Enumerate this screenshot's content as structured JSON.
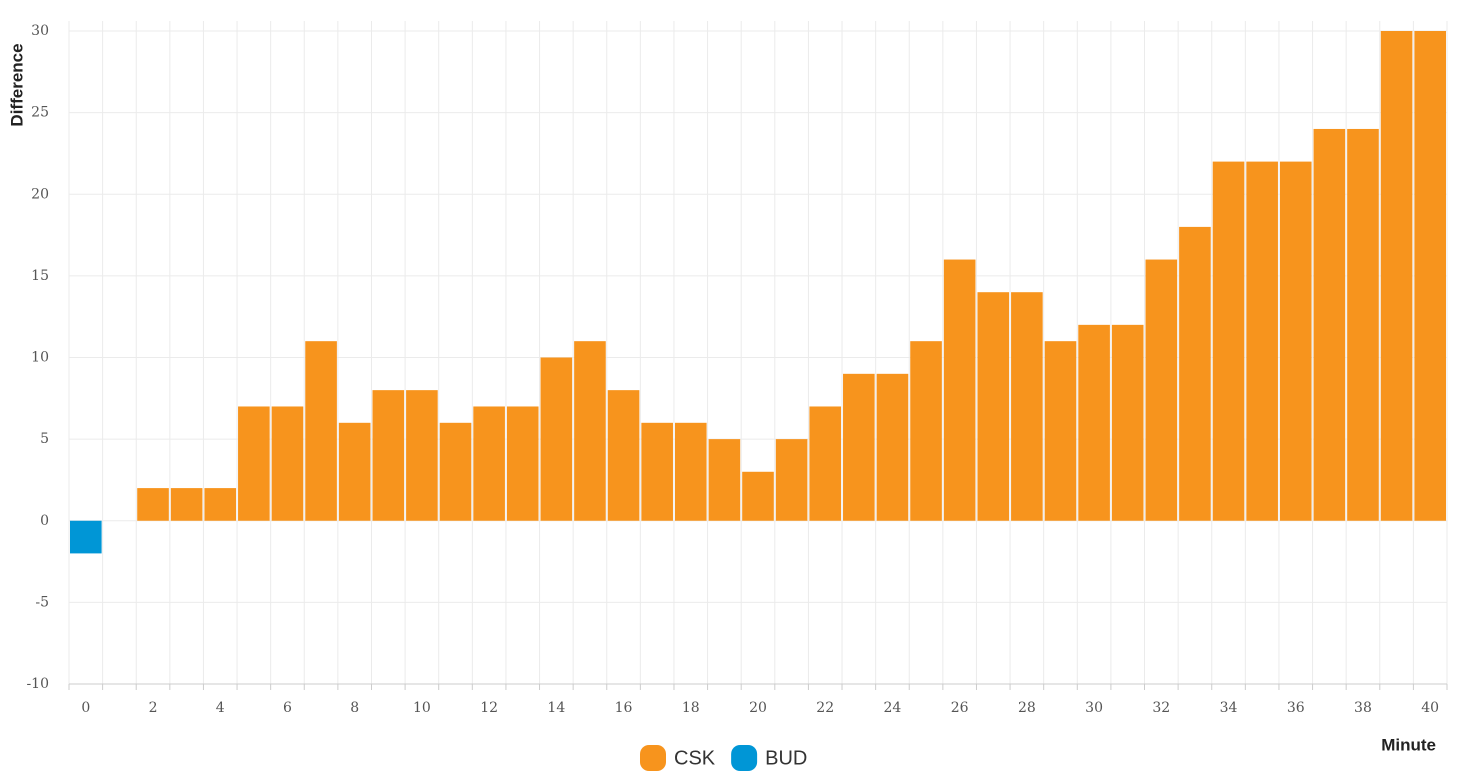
{
  "chart_data": {
    "type": "bar",
    "x_label": "Minute",
    "y_label": "Difference",
    "categories": [
      0,
      null,
      2,
      null,
      4,
      null,
      6,
      null,
      8,
      null,
      10,
      null,
      12,
      null,
      14,
      null,
      16,
      null,
      18,
      null,
      20,
      null,
      22,
      null,
      24,
      null,
      26,
      null,
      28,
      null,
      30,
      null,
      32,
      null,
      34,
      null,
      36,
      null,
      38,
      null,
      40
    ],
    "series": [
      {
        "name": "CSK",
        "color": "#f7941d",
        "values": [
          null,
          null,
          2,
          2,
          2,
          7,
          7,
          11,
          6,
          8,
          8,
          6,
          7,
          7,
          10,
          11,
          8,
          6,
          6,
          5,
          3,
          5,
          7,
          9,
          9,
          11,
          16,
          14,
          14,
          11,
          12,
          12,
          16,
          18,
          22,
          22,
          22,
          24,
          24,
          30,
          30
        ]
      },
      {
        "name": "BUD",
        "color": "#0096d6",
        "values": [
          -2,
          null,
          null,
          null,
          null,
          null,
          null,
          null,
          null,
          null,
          null,
          null,
          null,
          null,
          null,
          null,
          null,
          null,
          null,
          null,
          null,
          null,
          null,
          null,
          null,
          null,
          null,
          null,
          null,
          null,
          null,
          null,
          null,
          null,
          null,
          null,
          null,
          null,
          null,
          null,
          null
        ]
      }
    ],
    "ylim": [
      -10,
      30
    ],
    "yticks": [
      -10,
      -5,
      0,
      5,
      10,
      15,
      20,
      25,
      30
    ],
    "grid": true,
    "legend": "bottom"
  }
}
